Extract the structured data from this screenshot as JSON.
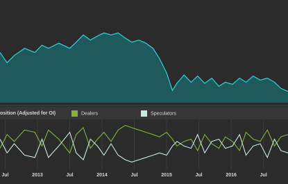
{
  "chart_data": [
    {
      "type": "area",
      "color": "#2fd3d8",
      "fill": "#1e5a5c",
      "xlim": [
        2012.42,
        2016.88
      ],
      "ylim": [
        0,
        100
      ],
      "x": [
        2012.42,
        2012.53,
        2012.64,
        2012.8,
        2012.96,
        2013.07,
        2013.17,
        2013.33,
        2013.5,
        2013.6,
        2013.71,
        2013.82,
        2013.93,
        2014.03,
        2014.14,
        2014.25,
        2014.36,
        2014.46,
        2014.57,
        2014.68,
        2014.79,
        2014.89,
        2015.0,
        2015.09,
        2015.16,
        2015.27,
        2015.38,
        2015.48,
        2015.59,
        2015.7,
        2015.81,
        2015.91,
        2016.02,
        2016.13,
        2016.23,
        2016.34,
        2016.45,
        2016.56,
        2016.67,
        2016.77,
        2016.88
      ],
      "values": [
        49,
        39,
        46,
        53,
        49,
        56,
        53,
        58,
        53,
        59,
        66,
        61,
        65,
        68,
        66,
        68,
        63,
        59,
        61,
        58,
        53,
        43,
        29,
        12,
        19,
        27,
        20,
        26,
        19,
        24,
        16,
        20,
        18,
        24,
        20,
        26,
        22,
        24,
        20,
        14,
        11
      ]
    },
    {
      "type": "line",
      "title": "osition (Adjusted for OI)",
      "xlim": [
        2012.42,
        2016.88
      ],
      "ylim": [
        0,
        100
      ],
      "grid": true,
      "xticks": [
        {
          "value": 2012.5,
          "label": "Jul"
        },
        {
          "value": 2013,
          "label": "2013"
        },
        {
          "value": 2013.5,
          "label": "Jul"
        },
        {
          "value": 2014,
          "label": "2014"
        },
        {
          "value": 2014.5,
          "label": "Jul"
        },
        {
          "value": 2015,
          "label": "2015"
        },
        {
          "value": 2015.5,
          "label": "Jul"
        },
        {
          "value": 2016,
          "label": "2016"
        },
        {
          "value": 2016.5,
          "label": "Jul"
        }
      ],
      "x": [
        2012.42,
        2012.53,
        2012.64,
        2012.8,
        2012.96,
        2013.07,
        2013.17,
        2013.33,
        2013.5,
        2013.6,
        2013.71,
        2013.82,
        2013.93,
        2014.03,
        2014.14,
        2014.25,
        2014.36,
        2014.46,
        2014.57,
        2014.68,
        2014.79,
        2014.89,
        2015.0,
        2015.09,
        2015.16,
        2015.27,
        2015.38,
        2015.48,
        2015.59,
        2015.7,
        2015.81,
        2015.91,
        2016.02,
        2016.13,
        2016.23,
        2016.34,
        2016.45,
        2016.56,
        2016.67,
        2016.77,
        2016.88
      ],
      "series": [
        {
          "name": "Dealers",
          "color": "#7fb539",
          "values": [
            40,
            70,
            55,
            80,
            75,
            45,
            80,
            60,
            30,
            70,
            85,
            40,
            60,
            75,
            55,
            80,
            90,
            85,
            80,
            75,
            70,
            65,
            75,
            60,
            45,
            55,
            60,
            35,
            70,
            50,
            40,
            65,
            55,
            35,
            75,
            60,
            55,
            80,
            45,
            65,
            70
          ]
        },
        {
          "name": "Speculators",
          "color": "#c8e8e2",
          "values": [
            60,
            30,
            50,
            25,
            20,
            60,
            20,
            45,
            75,
            30,
            15,
            60,
            45,
            25,
            50,
            25,
            15,
            10,
            15,
            20,
            25,
            30,
            25,
            45,
            55,
            45,
            40,
            70,
            30,
            55,
            60,
            40,
            45,
            70,
            25,
            45,
            50,
            20,
            60,
            35,
            30
          ]
        }
      ]
    }
  ]
}
